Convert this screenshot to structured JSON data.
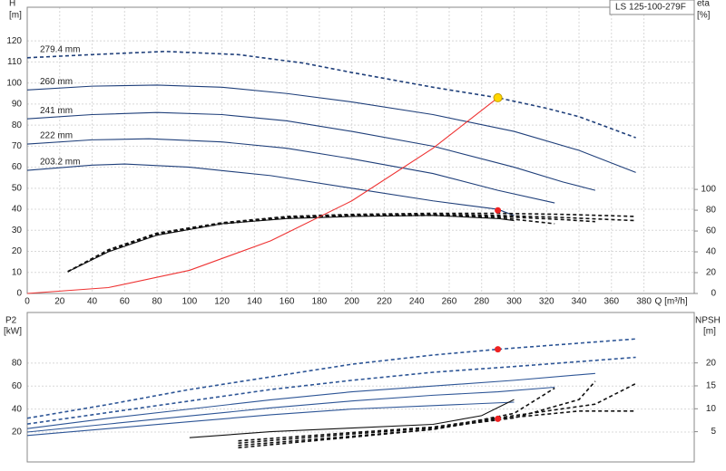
{
  "chart_data": [
    {
      "type": "line",
      "title": "LS 125-100-279F",
      "ylabel": "H",
      "yunit": "[m]",
      "y2label": "eta",
      "y2unit": "[%]",
      "xlabel": "Q [m³/h]",
      "xlim": [
        0,
        411
      ],
      "xticks": [
        0,
        20,
        40,
        60,
        80,
        100,
        120,
        140,
        160,
        180,
        200,
        220,
        240,
        260,
        280,
        300,
        320,
        340,
        360,
        380
      ],
      "ylim": [
        0,
        136
      ],
      "yticks": [
        0,
        10,
        20,
        30,
        40,
        50,
        60,
        70,
        80,
        90,
        100,
        110,
        120
      ],
      "y2lim": [
        0,
        275
      ],
      "y2ticks": [
        0,
        20,
        40,
        60,
        80,
        100
      ],
      "grid": true,
      "series": [
        {
          "name": "279.4 mm",
          "color": "#1f3f7a",
          "line_style": "dashed",
          "x": [
            0,
            40,
            85,
            130,
            170,
            200,
            250,
            290,
            320,
            340,
            375
          ],
          "values": [
            112,
            113.5,
            115,
            113.5,
            109.5,
            105,
            98,
            93,
            88,
            84,
            74
          ]
        },
        {
          "name": "260 mm",
          "color": "#1f3f7a",
          "line_style": "solid",
          "x": [
            0,
            40,
            80,
            120,
            160,
            200,
            250,
            300,
            340,
            375
          ],
          "values": [
            96.7,
            98.5,
            99,
            98,
            95,
            91,
            85,
            77,
            68,
            57.5
          ]
        },
        {
          "name": "241 mm",
          "color": "#1f3f7a",
          "line_style": "solid",
          "x": [
            0,
            40,
            80,
            120,
            160,
            200,
            250,
            300,
            330,
            350
          ],
          "values": [
            83,
            85,
            86,
            85,
            82,
            77,
            70,
            60,
            53,
            49
          ]
        },
        {
          "name": "222 mm",
          "color": "#1f3f7a",
          "line_style": "solid",
          "x": [
            0,
            40,
            75,
            120,
            160,
            200,
            250,
            290,
            325
          ],
          "values": [
            71,
            73,
            73.5,
            72,
            69,
            64,
            57,
            49,
            43
          ]
        },
        {
          "name": "203.2 mm",
          "color": "#1f3f7a",
          "line_style": "solid",
          "x": [
            0,
            40,
            60,
            100,
            150,
            200,
            250,
            290,
            300
          ],
          "values": [
            58.5,
            61,
            61.5,
            60,
            56,
            50,
            44,
            40,
            37
          ]
        },
        {
          "color": "#111111",
          "axis": "y2",
          "line_style": "dashed",
          "x": [
            25,
            50,
            80,
            120,
            160,
            200,
            250,
            290,
            330,
            375
          ],
          "values": [
            21,
            42,
            58,
            68,
            74,
            76,
            77,
            77,
            76,
            74
          ]
        },
        {
          "color": "#111111",
          "axis": "y2",
          "line_style": "dashed",
          "x": [
            25,
            50,
            80,
            120,
            160,
            200,
            250,
            290,
            330,
            375
          ],
          "values": [
            21,
            41.5,
            57.5,
            67.5,
            73.5,
            75.5,
            76,
            75,
            73,
            70
          ]
        },
        {
          "color": "#111111",
          "axis": "y2",
          "line_style": "dashed",
          "x": [
            25,
            50,
            80,
            120,
            160,
            200,
            250,
            290,
            330,
            350
          ],
          "values": [
            21,
            41,
            57,
            67,
            73,
            75,
            75.5,
            74,
            71,
            69
          ]
        },
        {
          "color": "#111111",
          "axis": "y2",
          "line_style": "dashed",
          "x": [
            25,
            50,
            80,
            120,
            160,
            200,
            250,
            290,
            325
          ],
          "values": [
            21,
            40.5,
            56.5,
            67,
            72.5,
            74.5,
            75,
            73,
            67
          ]
        },
        {
          "color": "#111111",
          "axis": "y2",
          "line_style": "solid",
          "x": [
            25,
            50,
            80,
            120,
            160,
            200,
            250,
            290,
            300
          ],
          "values": [
            21,
            40,
            56,
            67,
            72,
            74,
            75,
            72,
            70
          ]
        },
        {
          "color": "#ee3333",
          "line_style": "solid",
          "x": [
            0,
            50,
            100,
            150,
            200,
            250,
            290
          ],
          "values": [
            0,
            2.8,
            11,
            25,
            44,
            69,
            93
          ]
        },
        {
          "color": "#ffd700",
          "marker": "circle",
          "x": [
            290
          ],
          "values": [
            93
          ]
        },
        {
          "color": "#ee2222",
          "marker": "circle",
          "x": [
            290
          ],
          "values": [
            39.5
          ]
        }
      ]
    },
    {
      "type": "line",
      "ylabel": "P2",
      "yunit": "[kW]",
      "y2label": "NPSH",
      "y2unit": "[m]",
      "xlim": [
        0,
        411
      ],
      "ylim": [
        -6,
        124
      ],
      "yticks": [
        20,
        40,
        60,
        80
      ],
      "y2lim": [
        -1.6,
        31
      ],
      "y2ticks": [
        5,
        10,
        15,
        20
      ],
      "grid": true,
      "series": [
        {
          "color": "#2d5596",
          "line_style": "dashed",
          "x": [
            0,
            50,
            100,
            150,
            200,
            250,
            290,
            375
          ],
          "values": [
            32,
            44,
            57,
            68,
            79,
            87,
            92,
            101
          ]
        },
        {
          "color": "#2d5596",
          "line_style": "dashed",
          "x": [
            0,
            50,
            100,
            150,
            200,
            250,
            300,
            375
          ],
          "values": [
            27,
            37,
            47,
            57,
            65,
            72,
            77,
            85
          ]
        },
        {
          "color": "#2d5596",
          "line_style": "solid",
          "x": [
            0,
            50,
            100,
            150,
            200,
            250,
            300,
            350
          ],
          "values": [
            23,
            32,
            40,
            48,
            55,
            60,
            65,
            71
          ]
        },
        {
          "color": "#2d5596",
          "line_style": "solid",
          "x": [
            0,
            50,
            100,
            150,
            200,
            250,
            290,
            325
          ],
          "values": [
            20,
            27,
            34,
            41,
            47,
            52,
            55,
            59
          ]
        },
        {
          "color": "#2d5596",
          "line_style": "solid",
          "x": [
            0,
            50,
            100,
            150,
            200,
            250,
            300
          ],
          "values": [
            17,
            23,
            29,
            35,
            40,
            43,
            46
          ]
        },
        {
          "color": "#ee2222",
          "marker": "circle",
          "x": [
            290
          ],
          "values": [
            92
          ]
        },
        {
          "color": "#111111",
          "axis": "y2",
          "line_style": "solid",
          "x": [
            100,
            150,
            200,
            250,
            280,
            300
          ],
          "values": [
            3.7,
            5,
            5.8,
            6.6,
            8.5,
            12
          ]
        },
        {
          "color": "#111111",
          "axis": "y2",
          "line_style": "dashed",
          "x": [
            130,
            200,
            250,
            300,
            350,
            375
          ],
          "values": [
            3,
            4.8,
            6,
            8.5,
            11,
            15.5
          ]
        },
        {
          "color": "#111111",
          "axis": "y2",
          "line_style": "dashed",
          "x": [
            130,
            200,
            250,
            300,
            340,
            350
          ],
          "values": [
            2.5,
            4.5,
            5.8,
            8,
            12,
            16
          ]
        },
        {
          "color": "#111111",
          "axis": "y2",
          "line_style": "dashed",
          "x": [
            130,
            200,
            250,
            300,
            325
          ],
          "values": [
            2,
            4,
            5.5,
            9,
            14.5
          ]
        },
        {
          "color": "#111111",
          "axis": "y2",
          "line_style": "dashed",
          "x": [
            130,
            200,
            250,
            290,
            340,
            375
          ],
          "values": [
            1.5,
            3.8,
            5.5,
            7.8,
            9.5,
            9.5
          ]
        },
        {
          "color": "#ee2222",
          "axis": "y2",
          "marker": "circle",
          "x": [
            290
          ],
          "values": [
            7.8
          ]
        }
      ]
    }
  ]
}
